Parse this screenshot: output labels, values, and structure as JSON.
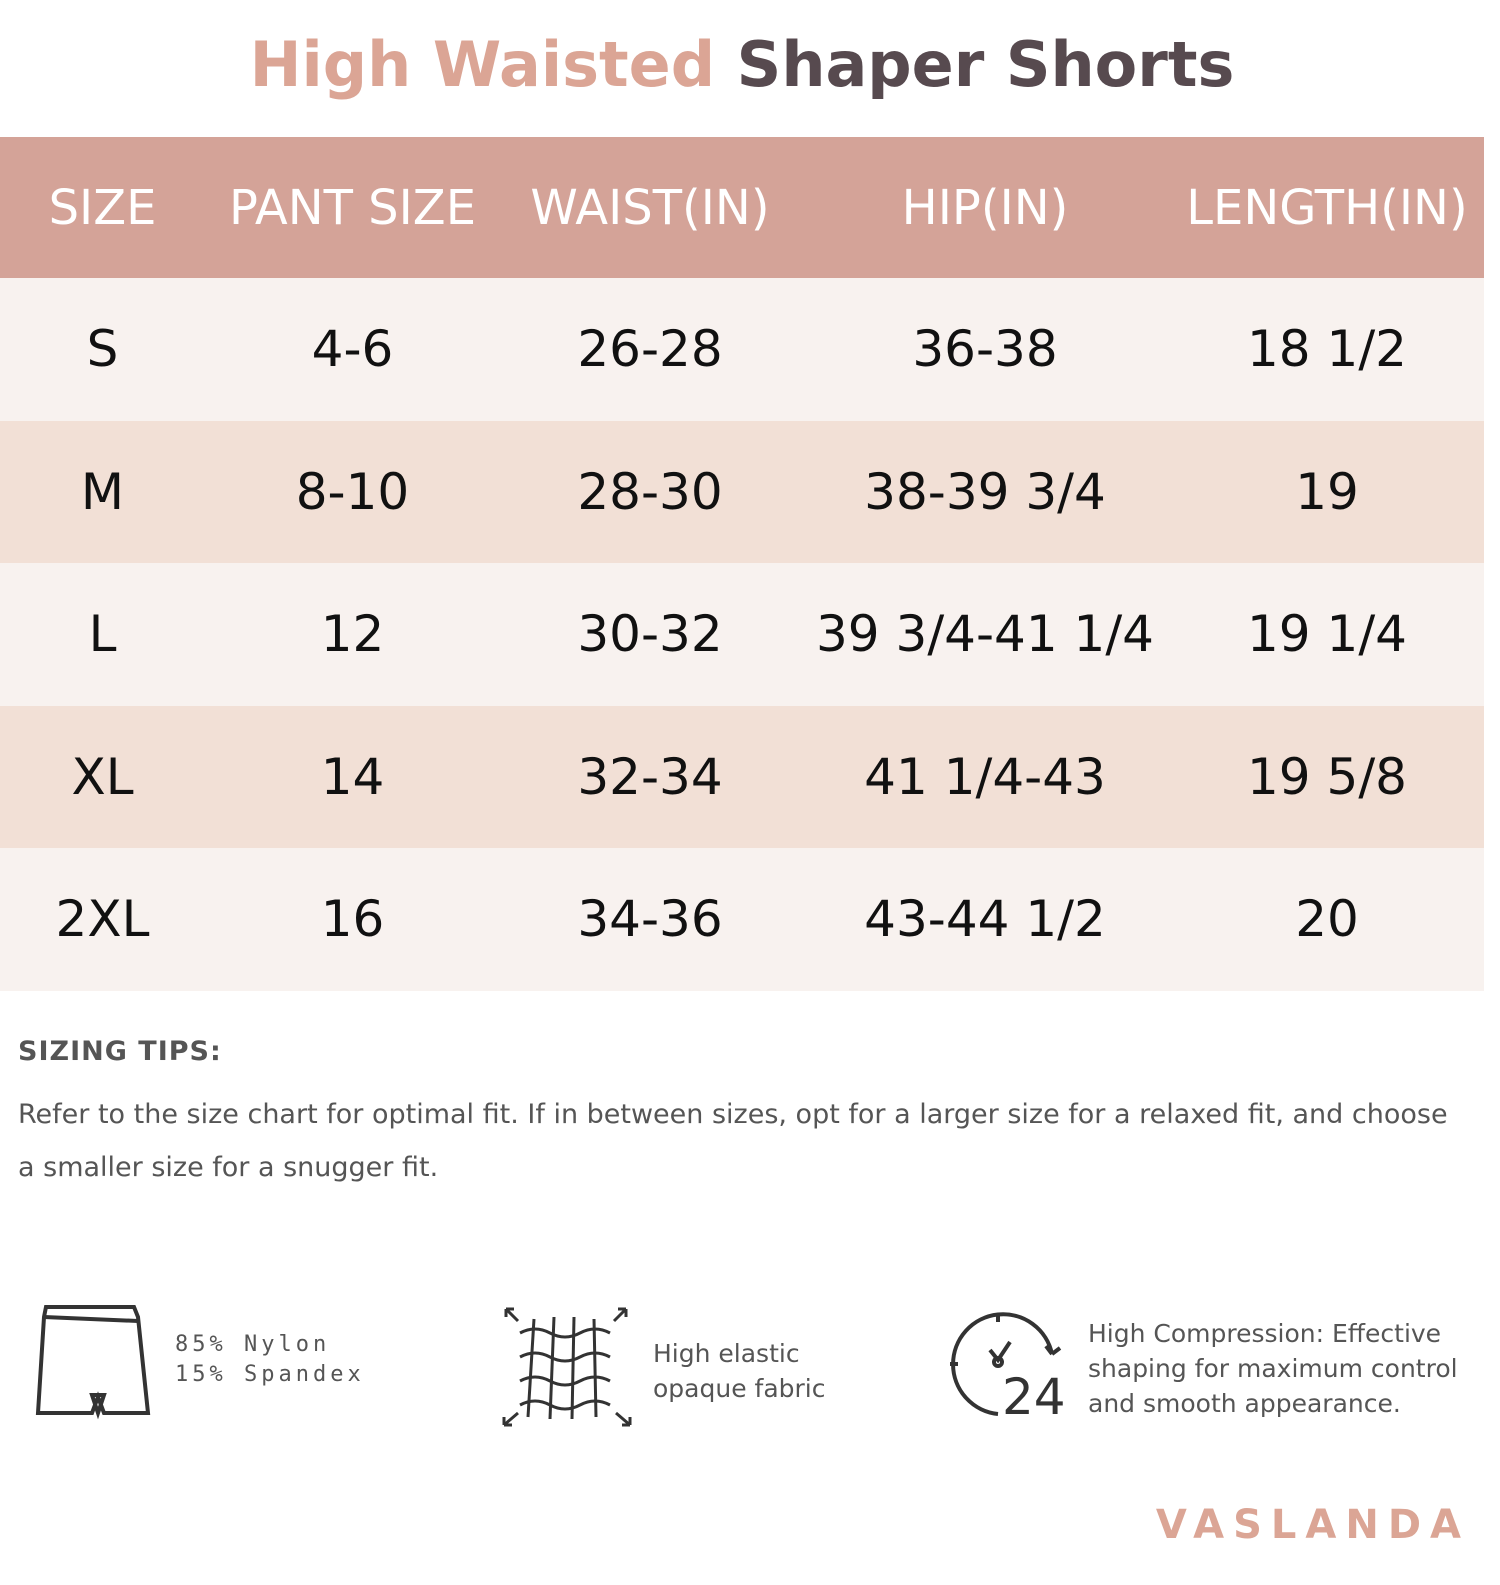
{
  "title": {
    "part1": "High Waisted",
    "part2": "Shaper Shorts"
  },
  "colors": {
    "header": "#d4a398",
    "accent": "#dba595",
    "row_light": "#f8f2ef",
    "row_dark": "#f2e0d6",
    "dark_text": "#574a4f"
  },
  "table": {
    "headers": [
      "SIZE",
      "PANT SIZE",
      "WAIST(IN)",
      "HIP(IN)",
      "LENGTH(IN)"
    ],
    "rows": [
      [
        "S",
        "4-6",
        "26-28",
        "36-38",
        "18 1/2"
      ],
      [
        "M",
        "8-10",
        "28-30",
        "38-39 3/4",
        "19"
      ],
      [
        "L",
        "12",
        "30-32",
        "39 3/4-41 1/4",
        "19 1/4"
      ],
      [
        "XL",
        "14",
        "32-34",
        "41 1/4-43",
        "19 5/8"
      ],
      [
        "2XL",
        "16",
        "34-36",
        "43-44 1/2",
        "20"
      ]
    ]
  },
  "tips": {
    "heading": "SIZING TIPS:",
    "text": "Refer to the size chart for optimal fit. If in between sizes, opt for a  larger size for a relaxed fit, and choose a smaller size for a snugger fit."
  },
  "features": [
    {
      "icon": "shorts-icon",
      "lines": [
        "85% Nylon",
        "15% Spandex"
      ]
    },
    {
      "icon": "stretch-fabric-icon",
      "lines": [
        "High elastic",
        "opaque fabric"
      ]
    },
    {
      "icon": "clock-24-icon",
      "lines": [
        "High Compression: Effective",
        "shaping for maximum control",
        "and smooth appearance."
      ]
    }
  ],
  "brand": "VASLANDA"
}
